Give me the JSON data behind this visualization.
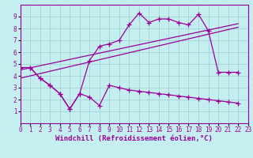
{
  "background_color": "#c5eef0",
  "grid_color": "#9ecece",
  "line_color": "#990099",
  "xlabel": "Windchill (Refroidissement éolien,°C)",
  "xlabel_fontsize": 6.5,
  "tick_fontsize": 5.5,
  "xlim": [
    0,
    23
  ],
  "ylim": [
    0,
    10
  ],
  "xticks": [
    0,
    1,
    2,
    3,
    4,
    5,
    6,
    7,
    8,
    9,
    10,
    11,
    12,
    13,
    14,
    15,
    16,
    17,
    18,
    19,
    20,
    21,
    22,
    23
  ],
  "yticks": [
    1,
    2,
    3,
    4,
    5,
    6,
    7,
    8,
    9
  ],
  "upper_zigzag_x": [
    0,
    1,
    2,
    3,
    4,
    5,
    6,
    7,
    8,
    9,
    10,
    11,
    12,
    13,
    14,
    15,
    16,
    17,
    18,
    19,
    20,
    21,
    22
  ],
  "upper_zigzag_y": [
    4.7,
    4.7,
    3.8,
    3.2,
    2.5,
    1.2,
    2.5,
    5.3,
    6.5,
    6.7,
    7.0,
    8.3,
    9.3,
    8.5,
    8.8,
    8.8,
    8.5,
    8.3,
    9.2,
    7.8,
    4.3,
    4.3,
    4.3
  ],
  "lower_zigzag_x": [
    1,
    2,
    3,
    4,
    5,
    6,
    7,
    8,
    9,
    10,
    11,
    12,
    13,
    14,
    15,
    16,
    17,
    18,
    19,
    20,
    21,
    22
  ],
  "lower_zigzag_y": [
    4.7,
    3.8,
    3.2,
    2.5,
    1.2,
    2.5,
    2.2,
    1.5,
    3.2,
    3.0,
    2.8,
    2.7,
    2.6,
    2.5,
    2.4,
    2.3,
    2.2,
    2.1,
    2.0,
    1.9,
    1.8,
    1.7
  ],
  "trend1_x": [
    0,
    22
  ],
  "trend1_y": [
    4.5,
    8.4
  ],
  "trend2_x": [
    0,
    22
  ],
  "trend2_y": [
    3.8,
    8.1
  ]
}
